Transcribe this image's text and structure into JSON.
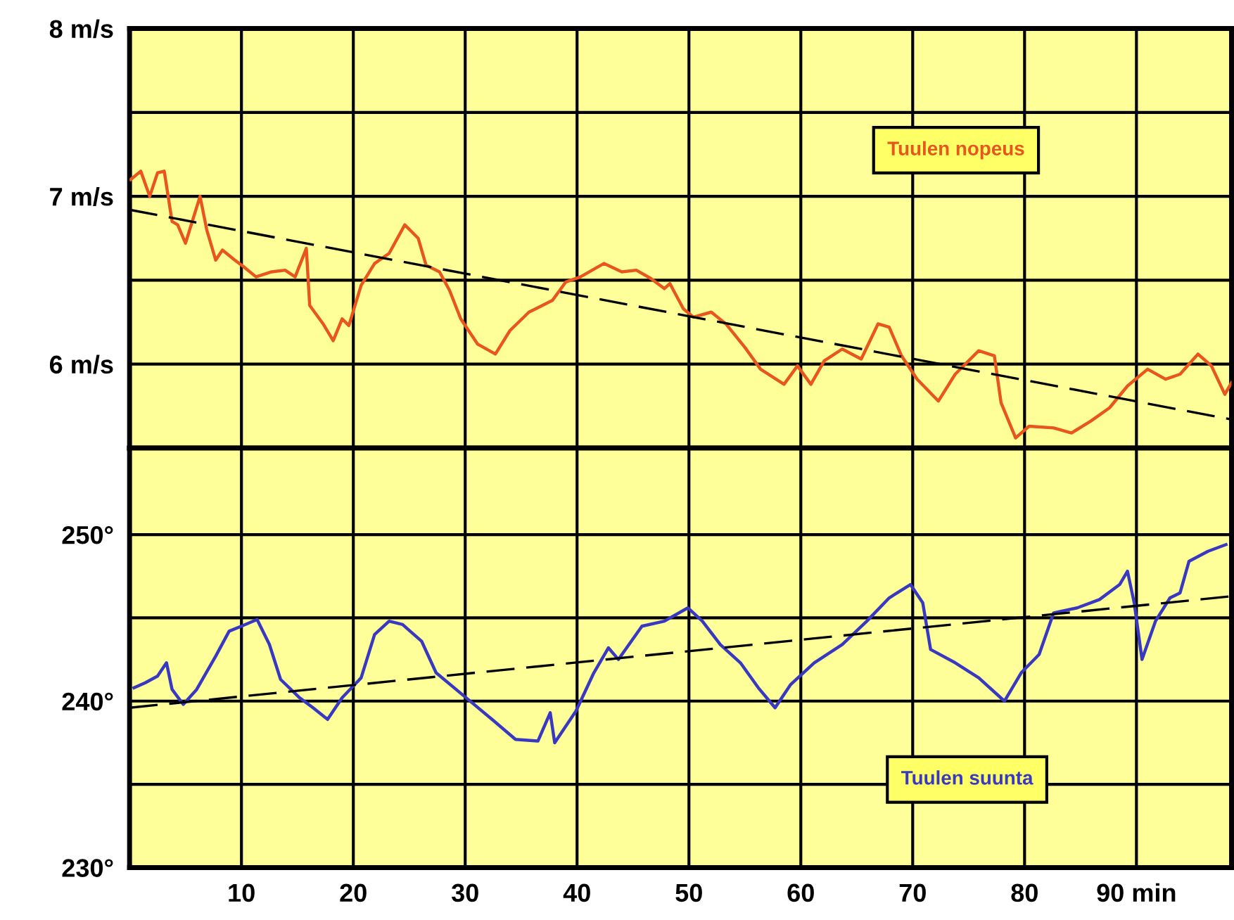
{
  "chart_data": [
    {
      "type": "line",
      "tick_labels": "y",
      "grid": true,
      "xlim": [
        0,
        98.5
      ],
      "ylim": [
        5.5,
        8
      ],
      "xticks": [
        10,
        20,
        30,
        40,
        50,
        60,
        70,
        80,
        90
      ],
      "yticks": [
        {
          "value": 6,
          "label": "6 m/s"
        },
        {
          "value": 6.5,
          "label": null
        },
        {
          "value": 7,
          "label": "7 m/s"
        },
        {
          "value": 7.5,
          "label": null
        },
        {
          "value": 8,
          "label": "8 m/s"
        }
      ],
      "series": [
        {
          "name": "Tuulen nopeus",
          "color": "#e8561e",
          "x": [
            0.1,
            1.0,
            1.8,
            2.5,
            3.1,
            3.8,
            4.3,
            5.0,
            6.3,
            6.9,
            7.7,
            8.3,
            9.4,
            10.2,
            11.3,
            12.7,
            13.9,
            14.8,
            15.8,
            16.1,
            17.3,
            18.2,
            19.0,
            19.6,
            20.7,
            21.9,
            23.2,
            24.6,
            25.8,
            26.5,
            27.7,
            28.6,
            29.6,
            31.1,
            32.7,
            34.0,
            35.7,
            37.8,
            39.0,
            40.3,
            42.4,
            44.0,
            45.3,
            46.6,
            47.8,
            48.3,
            49.5,
            50.4,
            52.0,
            53.3,
            55.0,
            56.4,
            58.5,
            59.7,
            60.9,
            62.1,
            63.7,
            65.4,
            66.9,
            67.9,
            69.0,
            70.4,
            72.3,
            73.8,
            75.9,
            77.3,
            77.9,
            79.2,
            80.4,
            82.6,
            84.2,
            85.9,
            87.6,
            89.2,
            91.0,
            92.6,
            93.9,
            95.5,
            96.7,
            97.9,
            98.5
          ],
          "values": [
            7.1,
            7.15,
            7.0,
            7.14,
            7.15,
            6.85,
            6.83,
            6.72,
            7.0,
            6.8,
            6.62,
            6.68,
            6.62,
            6.58,
            6.52,
            6.55,
            6.56,
            6.52,
            6.69,
            6.35,
            6.24,
            6.14,
            6.27,
            6.23,
            6.47,
            6.6,
            6.66,
            6.83,
            6.75,
            6.59,
            6.55,
            6.44,
            6.27,
            6.12,
            6.06,
            6.2,
            6.31,
            6.38,
            6.49,
            6.52,
            6.6,
            6.55,
            6.56,
            6.51,
            6.45,
            6.48,
            6.33,
            6.28,
            6.31,
            6.24,
            6.1,
            5.97,
            5.88,
            5.99,
            5.88,
            6.02,
            6.09,
            6.03,
            6.24,
            6.22,
            6.05,
            5.91,
            5.78,
            5.94,
            6.08,
            6.05,
            5.77,
            5.56,
            5.63,
            5.62,
            5.59,
            5.66,
            5.74,
            5.87,
            5.97,
            5.91,
            5.94,
            6.06,
            5.99,
            5.82,
            5.89
          ]
        },
        {
          "color": "#000000",
          "line_style": "dashed",
          "x": [
            0,
            98.5
          ],
          "values": [
            6.92,
            5.67
          ]
        }
      ]
    },
    {
      "type": "line",
      "grid": true,
      "xlim": [
        0,
        98.5
      ],
      "ylim": [
        230,
        255.2
      ],
      "xticks": [
        10,
        20,
        30,
        40,
        50,
        60,
        70,
        80,
        {
          "value": 90,
          "label": "90 min"
        }
      ],
      "yticks": [
        {
          "value": 230,
          "label": "230°"
        },
        {
          "value": 235,
          "label": null
        },
        {
          "value": 240,
          "label": "240°"
        },
        {
          "value": 245,
          "label": null
        },
        {
          "value": 250,
          "label": "250°"
        }
      ],
      "series": [
        {
          "name": "Tuulen suunta",
          "color": "#3838c0",
          "x": [
            0.4,
            1.4,
            2.5,
            3.3,
            3.8,
            4.8,
            6.0,
            7.7,
            8.9,
            10.0,
            11.4,
            12.5,
            13.5,
            15.2,
            16.4,
            17.7,
            19.0,
            20.7,
            21.9,
            23.2,
            24.4,
            26.1,
            27.4,
            29.9,
            32.4,
            34.5,
            36.5,
            37.6,
            38.0,
            39.9,
            41.5,
            42.8,
            43.7,
            45.8,
            47.8,
            49.9,
            51.2,
            52.8,
            54.6,
            56.2,
            57.7,
            59.1,
            61.2,
            63.7,
            65.9,
            67.9,
            69.8,
            70.9,
            71.6,
            73.8,
            75.9,
            78.2,
            79.7,
            81.3,
            82.6,
            84.7,
            86.7,
            88.5,
            89.2,
            89.8,
            90.5,
            91.7,
            93.0,
            93.9,
            94.7,
            96.4,
            98.0
          ],
          "values": [
            240.8,
            241.1,
            241.5,
            242.3,
            240.7,
            239.8,
            240.7,
            242.7,
            244.2,
            244.5,
            244.9,
            243.4,
            241.3,
            240.2,
            239.6,
            238.9,
            240.2,
            241.4,
            244.0,
            244.8,
            244.6,
            243.6,
            241.7,
            240.3,
            238.9,
            237.7,
            237.6,
            239.3,
            237.5,
            239.4,
            241.7,
            243.2,
            242.5,
            244.5,
            244.8,
            245.6,
            244.8,
            243.4,
            242.3,
            240.8,
            239.6,
            241.0,
            242.3,
            243.4,
            244.8,
            246.2,
            247.0,
            245.9,
            243.1,
            242.3,
            241.4,
            240.0,
            241.7,
            242.8,
            245.3,
            245.6,
            246.1,
            247.0,
            247.8,
            245.9,
            242.5,
            244.8,
            246.2,
            246.5,
            248.4,
            249.0,
            249.4
          ]
        },
        {
          "color": "#000000",
          "line_style": "dashed",
          "x": [
            0,
            98.5
          ],
          "values": [
            239.6,
            246.3
          ]
        }
      ]
    }
  ]
}
